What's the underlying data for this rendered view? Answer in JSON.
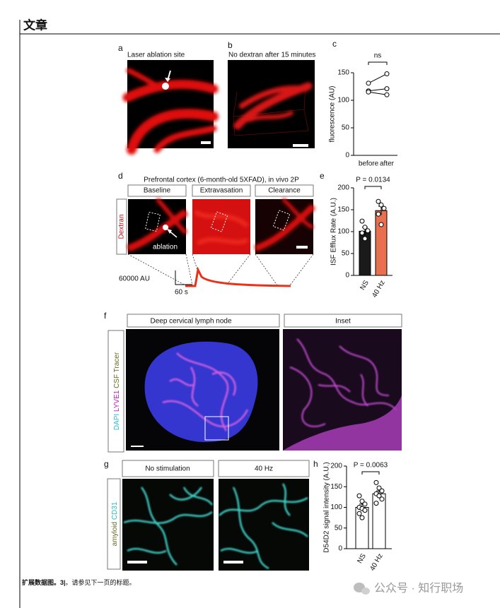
{
  "header": {
    "title": "文章"
  },
  "panels": {
    "a": {
      "label": "a",
      "title": "Laser ablation site"
    },
    "b": {
      "label": "b",
      "title": "No dextran after 15 minutes"
    },
    "c": {
      "label": "c",
      "y_label": "fluorescence (AU)",
      "categories": [
        "before",
        "after"
      ],
      "values": [
        [
          131,
          117,
          115
        ],
        [
          148,
          121,
          110
        ]
      ],
      "ylim": [
        0,
        150
      ],
      "yticks": [
        0,
        50,
        100,
        150
      ],
      "annotation": "ns"
    },
    "d": {
      "label": "d",
      "title": "Prefrontal cortex (6-month-old 5XFAD), in vivo 2P",
      "steps": [
        "Baseline",
        "Extravasation",
        "Clearance"
      ],
      "channel": "Dextran",
      "arrow_label": "ablation",
      "scale_y": "60000 AU",
      "scale_x": "60 s"
    },
    "e": {
      "label": "e",
      "y_label": "ISF Efflux Rate (A.U.)",
      "categories": [
        "NS",
        "40 Hz"
      ],
      "values": [
        101,
        148
      ],
      "errors": [
        9,
        10
      ],
      "colors": [
        "#1a1a1a",
        "#e8704f"
      ],
      "points": [
        [
          124,
          110,
          102,
          97,
          84
        ],
        [
          169,
          161,
          153,
          140,
          116
        ]
      ],
      "ylim": [
        0,
        200
      ],
      "yticks": [
        0,
        50,
        100,
        150,
        200
      ],
      "annotation": "P = 0.0134"
    },
    "f": {
      "label": "f",
      "views": [
        "Deep cervical lymph node",
        "Inset"
      ],
      "channels": [
        "DAPI",
        "LYVE1",
        "CSF Tracer"
      ]
    },
    "g": {
      "label": "g",
      "conditions": [
        "No stimulation",
        "40 Hz"
      ],
      "channels": [
        "amyloid",
        "CD31"
      ]
    },
    "h": {
      "label": "h",
      "y_label": "D54D2 signal intensity (A.U.)",
      "categories": [
        "NS",
        "40 Hz"
      ],
      "values": [
        100,
        133
      ],
      "errors": [
        8,
        7
      ],
      "colors": [
        "#ffffff",
        "#ffffff"
      ],
      "points": [
        [
          128,
          115,
          108,
          100,
          97,
          93,
          85,
          75
        ],
        [
          160,
          147,
          140,
          133,
          128,
          120,
          110
        ]
      ],
      "ylim": [
        0,
        200
      ],
      "yticks": [
        0,
        50,
        100,
        150,
        200
      ],
      "annotation": "P = 0.0063"
    }
  },
  "caption": {
    "label": "扩展数据图。3|",
    "text": "。请参见下一页的标题。"
  },
  "watermark": "公众号 · 知行职场"
}
